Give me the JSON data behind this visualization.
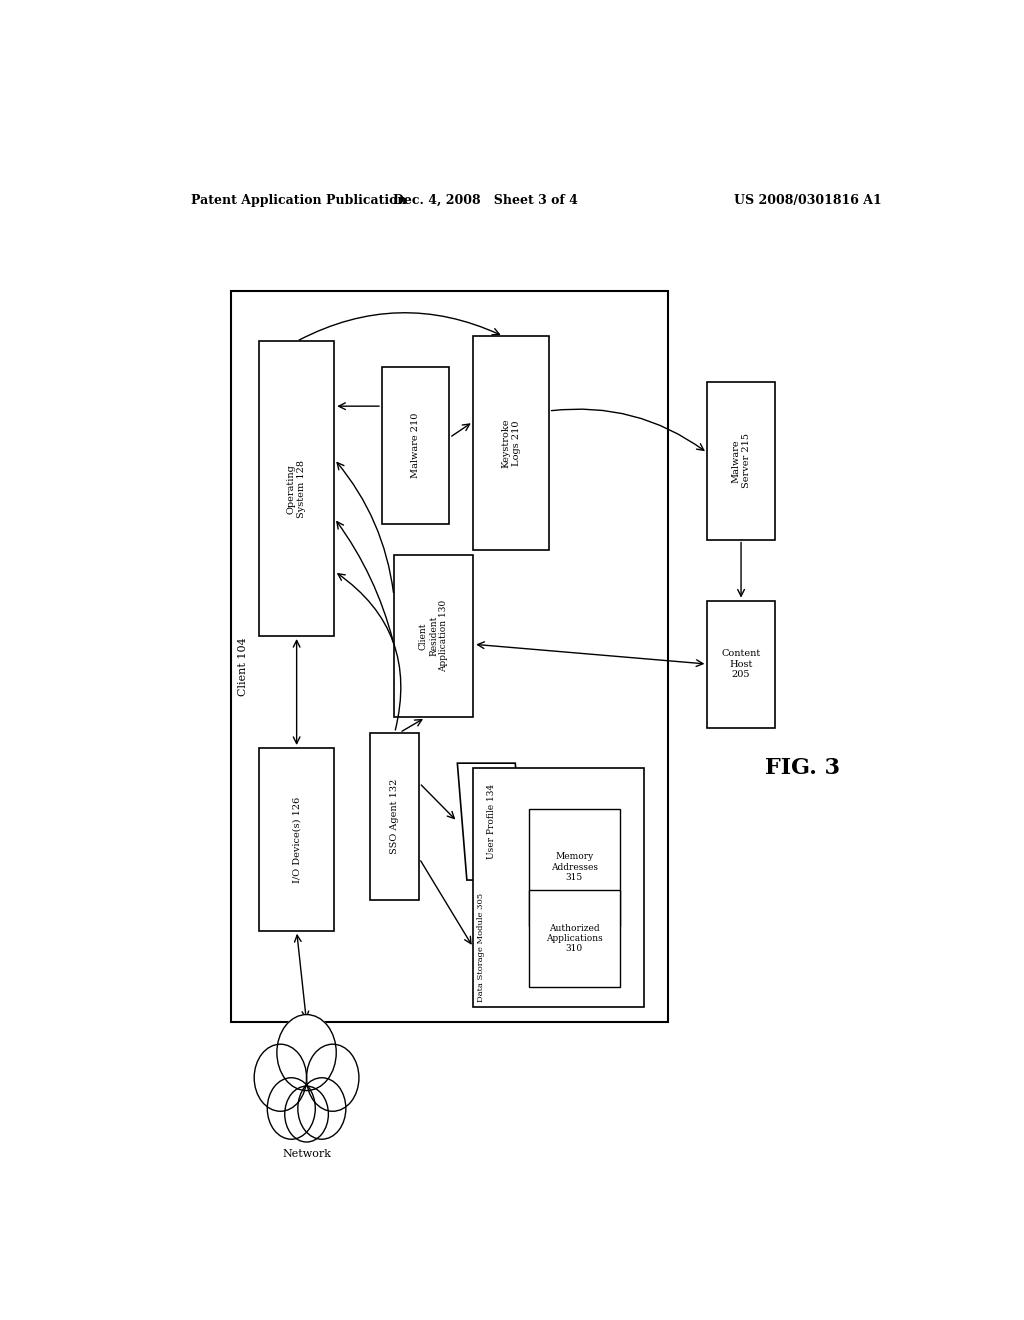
{
  "header_left": "Patent Application Publication",
  "header_center": "Dec. 4, 2008   Sheet 3 of 4",
  "header_right": "US 2008/0301816 A1",
  "figure_label": "FIG. 3",
  "background_color": "#ffffff"
}
